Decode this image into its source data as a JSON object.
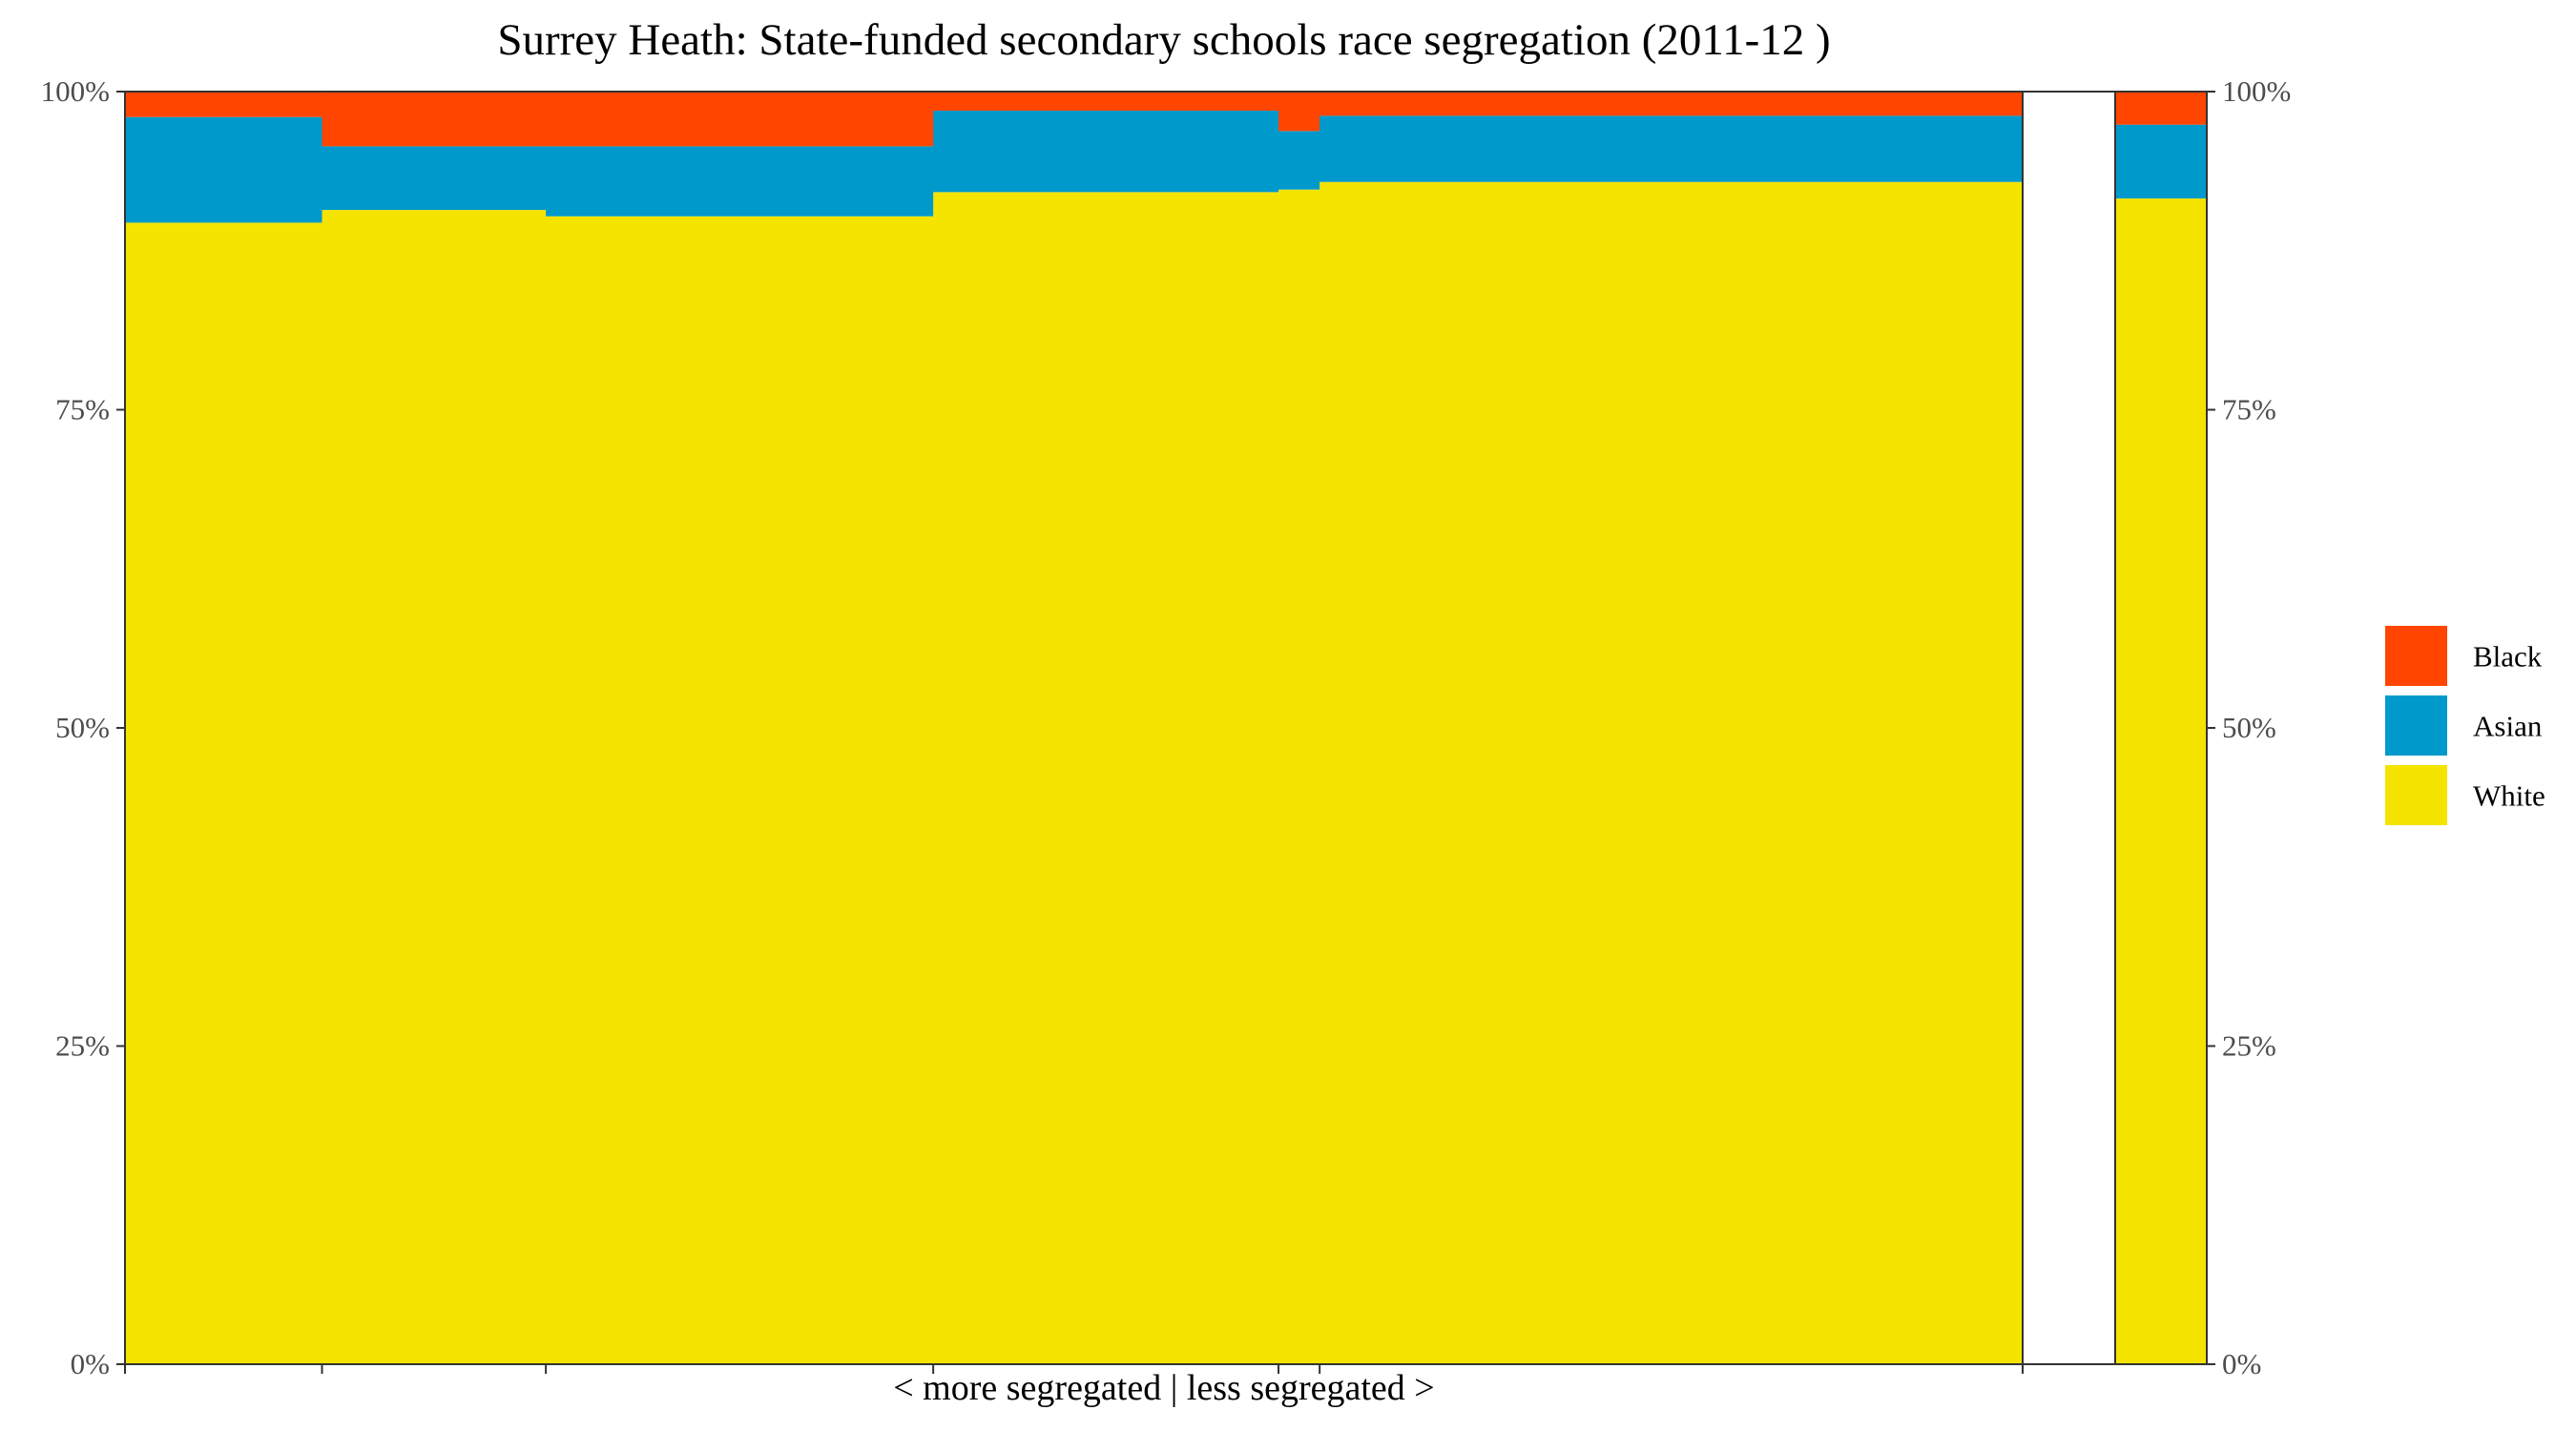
{
  "chart_data": {
    "type": "bar",
    "title": "Surrey Heath: State-funded secondary schools race segregation (2011-12 )",
    "xlabel": "< more segregated | less segregated >",
    "ylabel": "",
    "ylim": [
      0,
      100
    ],
    "y_ticks": [
      "0%",
      "25%",
      "50%",
      "75%",
      "100%"
    ],
    "stacking": "percent",
    "bar_widths": [
      206,
      234,
      405,
      361,
      43,
      735
    ],
    "summary_width": 96,
    "series": [
      {
        "name": "White",
        "color": "#F5E400",
        "values": [
          89.7,
          90.7,
          90.2,
          92.1,
          92.3,
          92.9
        ],
        "summary": 91.6
      },
      {
        "name": "Asian",
        "color": "#0099CC",
        "values": [
          8.3,
          5.0,
          5.5,
          6.4,
          4.6,
          5.2
        ],
        "summary": 5.8
      },
      {
        "name": "Black",
        "color": "#FF4500",
        "values": [
          2.0,
          4.3,
          4.3,
          1.5,
          3.1,
          1.9
        ],
        "summary": 2.6
      }
    ],
    "legend": {
      "position": "right",
      "order": [
        "Black",
        "Asian",
        "White"
      ]
    },
    "grid": false
  }
}
